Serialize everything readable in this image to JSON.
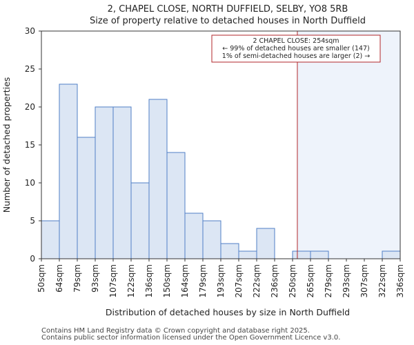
{
  "chart_data": {
    "type": "bar",
    "title": "2, CHAPEL CLOSE, NORTH DUFFIELD, SELBY, YO8 5RB",
    "subtitle": "Size of property relative to detached houses in North Duffield",
    "xlabel": "Distribution of detached houses by size in North Duffield",
    "ylabel": "Number of detached properties",
    "bin_edges": [
      50,
      64,
      79,
      93,
      107,
      122,
      136,
      150,
      164,
      179,
      193,
      207,
      222,
      236,
      250,
      265,
      279,
      293,
      307,
      322,
      336
    ],
    "x_tick_labels": [
      "50sqm",
      "64sqm",
      "79sqm",
      "93sqm",
      "107sqm",
      "122sqm",
      "136sqm",
      "150sqm",
      "164sqm",
      "179sqm",
      "193sqm",
      "207sqm",
      "222sqm",
      "236sqm",
      "250sqm",
      "265sqm",
      "279sqm",
      "293sqm",
      "307sqm",
      "322sqm",
      "336sqm"
    ],
    "values": [
      5,
      23,
      16,
      20,
      20,
      10,
      21,
      14,
      6,
      5,
      2,
      1,
      4,
      0,
      1,
      1,
      0,
      0,
      0,
      1
    ],
    "ylim": [
      0,
      30
    ],
    "yticks": [
      0,
      5,
      10,
      15,
      20,
      25,
      30
    ],
    "grid": false,
    "bar_color": "#dce6f4",
    "bar_edge_color": "#4f7fc6",
    "highlight_value": 254,
    "highlight_color": "#b0262a",
    "highlight_region_color": "#eef3fb",
    "annotation": {
      "lines": [
        "2 CHAPEL CLOSE: 254sqm",
        "← 99% of detached houses are smaller (147)",
        "1% of semi-detached houses are larger (2) →"
      ]
    }
  },
  "footer": {
    "line1": "Contains HM Land Registry data © Crown copyright and database right 2025.",
    "line2": "Contains public sector information licensed under the Open Government Licence v3.0."
  }
}
